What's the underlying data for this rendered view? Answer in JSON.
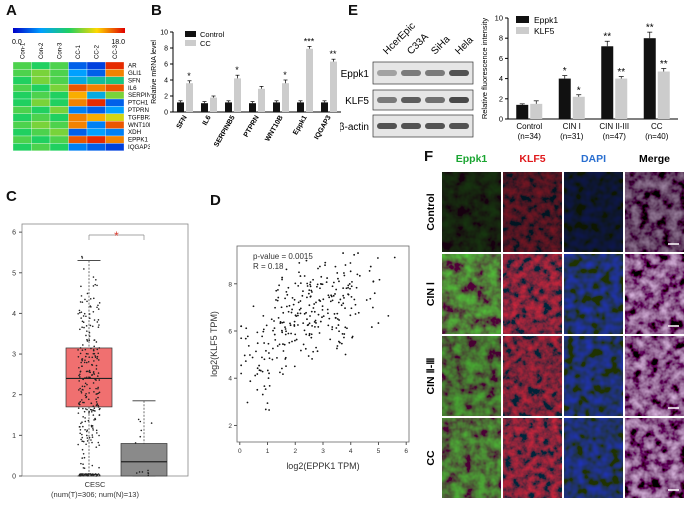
{
  "panels": {
    "a": "A",
    "b": "B",
    "c": "C",
    "d": "D",
    "e": "E",
    "f": "F"
  },
  "colors": {
    "bar_dark": "#111111",
    "bar_light": "#cccccc",
    "box_red": "#f07070",
    "box_gray": "#8a8a8a",
    "sig_red": "#d83a2e",
    "eppk1_green": "#1aa531",
    "klf5_red": "#e0181b",
    "dapi_blue": "#2a6fd0"
  },
  "heatmap": {
    "scale_min": "0.0",
    "scale_max": "18.0",
    "columns": [
      "Con-1",
      "Con-2",
      "Con-3",
      "CC-1",
      "CC-2",
      "CC-3"
    ],
    "genes": [
      "AR",
      "GLI1",
      "SFN",
      "IL6",
      "SERPINB5",
      "PTCH1",
      "PTPRN",
      "TGFBR3",
      "WNT10B",
      "XDH",
      "EPPK1",
      "IQGAP3"
    ],
    "levels": [
      [
        0.55,
        0.5,
        0.55,
        0.15,
        0.1,
        0.95
      ],
      [
        0.55,
        0.6,
        0.55,
        0.25,
        0.15,
        0.85
      ],
      [
        0.5,
        0.6,
        0.55,
        0.3,
        0.4,
        0.45
      ],
      [
        0.55,
        0.5,
        0.6,
        0.9,
        0.85,
        0.9
      ],
      [
        0.5,
        0.55,
        0.5,
        0.8,
        0.3,
        0.6
      ],
      [
        0.5,
        0.6,
        0.5,
        0.85,
        0.95,
        0.15
      ],
      [
        0.55,
        0.5,
        0.6,
        0.2,
        0.15,
        0.25
      ],
      [
        0.5,
        0.55,
        0.5,
        0.85,
        0.8,
        0.7
      ],
      [
        0.55,
        0.6,
        0.55,
        0.85,
        0.2,
        0.9
      ],
      [
        0.5,
        0.55,
        0.6,
        0.15,
        0.25,
        0.2
      ],
      [
        0.55,
        0.5,
        0.55,
        0.9,
        0.95,
        0.85
      ],
      [
        0.5,
        0.55,
        0.5,
        0.2,
        0.15,
        0.1
      ]
    ]
  },
  "chart_data": [
    {
      "type": "bar",
      "ylabel": "Relative mRNA level",
      "ylim": [
        0,
        10
      ],
      "yticks": [
        "0",
        "2",
        "4",
        "6",
        "8",
        "10"
      ],
      "categories": [
        "SFN",
        "IL6",
        "SERPINB5",
        "PTPRN",
        "WNT10B",
        "Eppk1",
        "IQGAP3"
      ],
      "series": [
        {
          "name": "Control",
          "values": [
            1.2,
            1.1,
            1.2,
            1.1,
            1.2,
            1.2,
            1.2
          ],
          "errors": [
            0.2,
            0.2,
            0.2,
            0.2,
            0.2,
            0.2,
            0.2
          ]
        },
        {
          "name": "CC",
          "values": [
            3.6,
            1.8,
            4.2,
            2.9,
            3.6,
            7.9,
            6.3
          ],
          "errors": [
            0.3,
            0.2,
            0.4,
            0.3,
            0.4,
            0.3,
            0.3
          ]
        }
      ],
      "significance": [
        "*",
        "",
        "*",
        "",
        "*",
        "***",
        "**"
      ]
    },
    {
      "type": "box",
      "yticks": [
        "0",
        "1",
        "2",
        "3",
        "4",
        "5",
        "6"
      ],
      "ylim": [
        0,
        6.2
      ],
      "xlabel": "CESC",
      "subtitle": "(num(T)=306; num(N)=13)",
      "boxes": [
        {
          "q1": 1.7,
          "median": 2.4,
          "q3": 3.15,
          "min": 0.0,
          "max": 5.3
        },
        {
          "q1": 0.0,
          "median": 0.35,
          "q3": 0.8,
          "min": 0.0,
          "max": 1.85
        }
      ],
      "significance": "*"
    },
    {
      "type": "scatter",
      "xlabel": "log2(EPPK1 TPM)",
      "ylabel": "log2(KLF5 TPM)",
      "xticks": [
        "0",
        "1",
        "2",
        "3",
        "4",
        "5",
        "6"
      ],
      "yticks": [
        "2",
        "4",
        "6",
        "8"
      ],
      "xlim": [
        -0.1,
        6.1
      ],
      "ylim": [
        1.3,
        9.6
      ],
      "annotation_p": "p-value = 0.0015",
      "annotation_r": "R = 0.18"
    },
    {
      "type": "bar",
      "ylabel": "Relative fluorescence intensity",
      "ylim": [
        0,
        10
      ],
      "yticks": [
        "0",
        "2",
        "4",
        "6",
        "8",
        "10"
      ],
      "categories": [
        "Control",
        "CIN I",
        "CIN II-III",
        "CC"
      ],
      "category_n": [
        "(n=34)",
        "(n=31)",
        "(n=47)",
        "(n=40)"
      ],
      "series": [
        {
          "name": "Eppk1",
          "values": [
            1.4,
            4.0,
            7.2,
            8.0
          ],
          "errors": [
            0.1,
            0.3,
            0.5,
            0.6
          ]
        },
        {
          "name": "KLF5",
          "values": [
            1.5,
            2.2,
            4.0,
            4.7
          ],
          "errors": [
            0.3,
            0.2,
            0.2,
            0.3
          ]
        }
      ],
      "significance_eppk1": [
        "",
        "*",
        "**",
        "**"
      ],
      "significance_klf5": [
        "",
        "*",
        "**",
        "**"
      ]
    }
  ],
  "western": {
    "cell_lines": [
      "HcerEpic",
      "C33A",
      "SiHa",
      "Hela"
    ],
    "rows": [
      "Eppk1",
      "KLF5",
      "β-actin"
    ]
  },
  "micro": {
    "columns": [
      "Eppk1",
      "KLF5",
      "DAPI",
      "Merge"
    ],
    "rows": [
      "Control",
      "CIN Ⅰ",
      "CIN Ⅱ-Ⅲ",
      "CC"
    ]
  }
}
